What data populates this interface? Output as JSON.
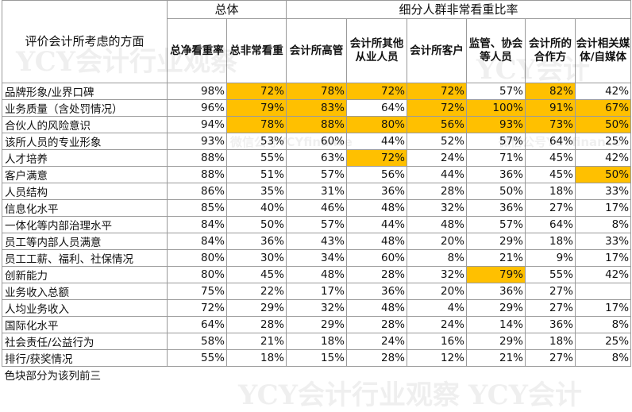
{
  "table": {
    "header_groups": [
      "总体",
      "细分人群非常看重比率"
    ],
    "row_header": "评价会计所考虑的方面",
    "columns": [
      "总净看重率",
      "总非常看重",
      "会计所高管",
      "会计所其他从业人员",
      "会计所客户",
      "监管、协会等人员",
      "会计所的合作方",
      "会计相关媒体/自媒体"
    ],
    "highlight_color": "#ffc000",
    "rows": [
      {
        "label": "品牌形象/业界口碑",
        "values": [
          "98%",
          "72%",
          "78%",
          "72%",
          "72%",
          "57%",
          "82%",
          "42%"
        ],
        "hl": [
          false,
          true,
          true,
          true,
          true,
          false,
          true,
          false
        ]
      },
      {
        "label": "业务质量（含处罚情况）",
        "values": [
          "96%",
          "79%",
          "83%",
          "64%",
          "72%",
          "100%",
          "91%",
          "67%"
        ],
        "hl": [
          false,
          true,
          true,
          false,
          true,
          true,
          true,
          true
        ]
      },
      {
        "label": "合伙人的风险意识",
        "values": [
          "94%",
          "78%",
          "88%",
          "80%",
          "56%",
          "93%",
          "73%",
          "50%"
        ],
        "hl": [
          false,
          true,
          true,
          true,
          true,
          true,
          true,
          true
        ]
      },
      {
        "label": "该所人员的专业形象",
        "values": [
          "93%",
          "53%",
          "60%",
          "44%",
          "52%",
          "57%",
          "64%",
          "25%"
        ],
        "hl": [
          false,
          false,
          false,
          false,
          false,
          false,
          false,
          false
        ]
      },
      {
        "label": "人才培养",
        "values": [
          "88%",
          "55%",
          "63%",
          "72%",
          "24%",
          "71%",
          "45%",
          "42%"
        ],
        "hl": [
          false,
          false,
          false,
          true,
          false,
          false,
          false,
          false
        ]
      },
      {
        "label": "客户满意",
        "values": [
          "88%",
          "51%",
          "57%",
          "56%",
          "44%",
          "36%",
          "45%",
          "50%"
        ],
        "hl": [
          false,
          false,
          false,
          false,
          false,
          false,
          false,
          true
        ]
      },
      {
        "label": "人员结构",
        "values": [
          "86%",
          "35%",
          "31%",
          "36%",
          "28%",
          "50%",
          "18%",
          "33%"
        ],
        "hl": [
          false,
          false,
          false,
          false,
          false,
          false,
          false,
          false
        ]
      },
      {
        "label": "信息化水平",
        "values": [
          "85%",
          "40%",
          "46%",
          "48%",
          "32%",
          "36%",
          "27%",
          "17%"
        ],
        "hl": [
          false,
          false,
          false,
          false,
          false,
          false,
          false,
          false
        ]
      },
      {
        "label": "一体化等内部治理水平",
        "values": [
          "84%",
          "50%",
          "57%",
          "44%",
          "48%",
          "57%",
          "64%",
          "8%"
        ],
        "hl": [
          false,
          false,
          false,
          false,
          false,
          false,
          false,
          false
        ]
      },
      {
        "label": "员工等内部人员满意",
        "values": [
          "84%",
          "36%",
          "43%",
          "48%",
          "20%",
          "29%",
          "18%",
          "33%"
        ],
        "hl": [
          false,
          false,
          false,
          false,
          false,
          false,
          false,
          false
        ]
      },
      {
        "label": "员工工薪、福利、社保情况",
        "values": [
          "80%",
          "30%",
          "34%",
          "60%",
          "8%",
          "21%",
          "9%",
          "17%"
        ],
        "hl": [
          false,
          false,
          false,
          false,
          false,
          false,
          false,
          false
        ]
      },
      {
        "label": "创新能力",
        "values": [
          "80%",
          "45%",
          "48%",
          "28%",
          "32%",
          "79%",
          "55%",
          "42%"
        ],
        "hl": [
          false,
          false,
          false,
          false,
          false,
          true,
          false,
          false
        ]
      },
      {
        "label": "业务收入总额",
        "values": [
          "75%",
          "22%",
          "17%",
          "36%",
          "20%",
          "36%",
          "27%",
          ""
        ],
        "hl": [
          false,
          false,
          false,
          false,
          false,
          false,
          false,
          false
        ]
      },
      {
        "label": "人均业务收入",
        "values": [
          "72%",
          "29%",
          "32%",
          "48%",
          "4%",
          "29%",
          "27%",
          "17%"
        ],
        "hl": [
          false,
          false,
          false,
          false,
          false,
          false,
          false,
          false
        ]
      },
      {
        "label": "国际化水平",
        "values": [
          "64%",
          "28%",
          "29%",
          "28%",
          "24%",
          "14%",
          "36%",
          "8%"
        ],
        "hl": [
          false,
          false,
          false,
          false,
          false,
          false,
          false,
          false
        ]
      },
      {
        "label": "社会责任/公益行为",
        "values": [
          "58%",
          "21%",
          "18%",
          "24%",
          "16%",
          "29%",
          "18%",
          "25%"
        ],
        "hl": [
          false,
          false,
          false,
          false,
          false,
          false,
          false,
          false
        ]
      },
      {
        "label": "排行/获奖情况",
        "values": [
          "55%",
          "18%",
          "15%",
          "28%",
          "12%",
          "21%",
          "27%",
          "8%"
        ],
        "hl": [
          false,
          false,
          false,
          false,
          false,
          false,
          false,
          false
        ]
      }
    ],
    "footnote": "色块部分为该列前三"
  },
  "watermarks": {
    "main": "YCY会计行业观察",
    "sub": "微信公号YCYfinance",
    "right": "YCY会计"
  }
}
